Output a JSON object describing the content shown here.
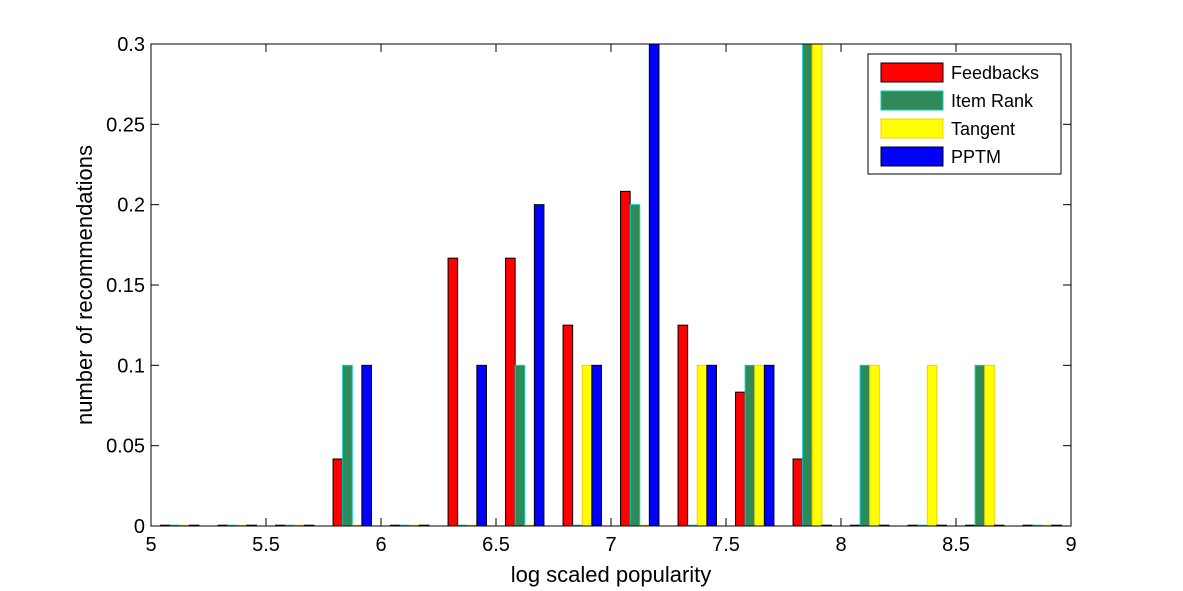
{
  "chart_data": {
    "type": "bar",
    "title": "",
    "xlabel": "log scaled popularity",
    "ylabel": "number of recommendations",
    "xlim": [
      5,
      9
    ],
    "ylim": [
      0,
      0.3
    ],
    "xticks": [
      "5",
      "5.5",
      "6",
      "6.5",
      "7",
      "7.5",
      "8",
      "8.5",
      "9"
    ],
    "xtick_values": [
      5,
      5.5,
      6,
      6.5,
      7,
      7.5,
      8,
      8.5,
      9
    ],
    "yticks": [
      "0",
      "0.05",
      "0.1",
      "0.15",
      "0.2",
      "0.25",
      "0.3"
    ],
    "ytick_values": [
      0,
      0.05,
      0.1,
      0.15,
      0.2,
      0.25,
      0.3
    ],
    "grid": false,
    "legend_position": "top-right",
    "bin_centers": [
      5.125,
      5.375,
      5.625,
      5.875,
      6.125,
      6.375,
      6.625,
      6.875,
      7.125,
      7.375,
      7.625,
      7.875,
      8.125,
      8.375,
      8.625,
      8.875
    ],
    "series": [
      {
        "name": "Feedbacks",
        "color": "#ff0000",
        "values": [
          0,
          0,
          0,
          0.0417,
          0,
          0.1667,
          0.1667,
          0.125,
          0.2083,
          0.125,
          0.0833,
          0.0417,
          0,
          0,
          0,
          0
        ]
      },
      {
        "name": "Item Rank",
        "color": "#2e8b57",
        "edge": "#00cccc",
        "values": [
          0,
          0,
          0,
          0.1,
          0,
          0,
          0.1,
          0,
          0.2,
          0,
          0.1,
          0.3,
          0.1,
          0,
          0.1,
          0
        ]
      },
      {
        "name": "Tangent",
        "color": "#ffff00",
        "edge": "#ffcc00",
        "values": [
          0,
          0,
          0,
          0,
          0,
          0,
          0,
          0.1,
          0,
          0.1,
          0.1,
          0.3,
          0.1,
          0.1,
          0.1,
          0
        ]
      },
      {
        "name": "PPTM",
        "color": "#0000ff",
        "values": [
          0,
          0,
          0,
          0.1,
          0,
          0.1,
          0.2,
          0.1,
          0.3,
          0.1,
          0.1,
          0,
          0,
          0,
          0,
          0
        ]
      }
    ]
  }
}
